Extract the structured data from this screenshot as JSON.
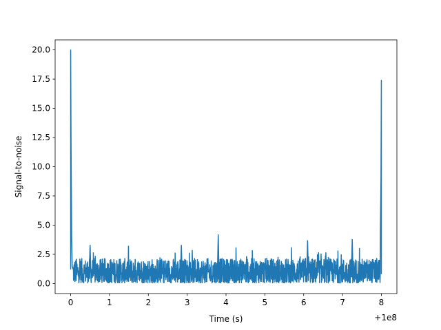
{
  "chart_data": {
    "type": "line",
    "title": "",
    "xlabel": "Time (s)",
    "ylabel": "Signal-to-noise",
    "x_offset_label": "+1e8",
    "xlim": [
      -0.4,
      8.4
    ],
    "ylim": [
      -0.86,
      20.86
    ],
    "x_ticks": [
      0,
      1,
      2,
      3,
      4,
      5,
      6,
      7,
      8
    ],
    "x_tick_labels": [
      "0",
      "1",
      "2",
      "3",
      "4",
      "5",
      "6",
      "7",
      "8"
    ],
    "y_ticks": [
      0.0,
      2.5,
      5.0,
      7.5,
      10.0,
      12.5,
      15.0,
      17.5,
      20.0
    ],
    "y_tick_labels": [
      "0.0",
      "2.5",
      "5.0",
      "7.5",
      "10.0",
      "12.5",
      "15.0",
      "17.5",
      "20.0"
    ],
    "grid": false,
    "legend": "none",
    "line_color": "#1f77b4",
    "series": [
      {
        "x": [
          0.0,
          0.01,
          0.02,
          0.03,
          0.05,
          0.2,
          0.5,
          1.0,
          1.5,
          2.0,
          2.5,
          3.0,
          3.5,
          3.8,
          4.0,
          4.5,
          5.0,
          5.5,
          6.0,
          6.5,
          7.0,
          7.5,
          7.9,
          7.96,
          7.98,
          7.99,
          8.0
        ],
        "y": [
          20.0,
          12.0,
          6.0,
          2.5,
          1.5,
          2.0,
          1.8,
          2.1,
          1.7,
          2.3,
          1.9,
          2.0,
          2.2,
          4.2,
          1.8,
          2.0,
          2.1,
          1.9,
          2.4,
          2.0,
          1.9,
          2.2,
          2.0,
          4.6,
          7.0,
          12.0,
          17.4
        ]
      }
    ]
  }
}
